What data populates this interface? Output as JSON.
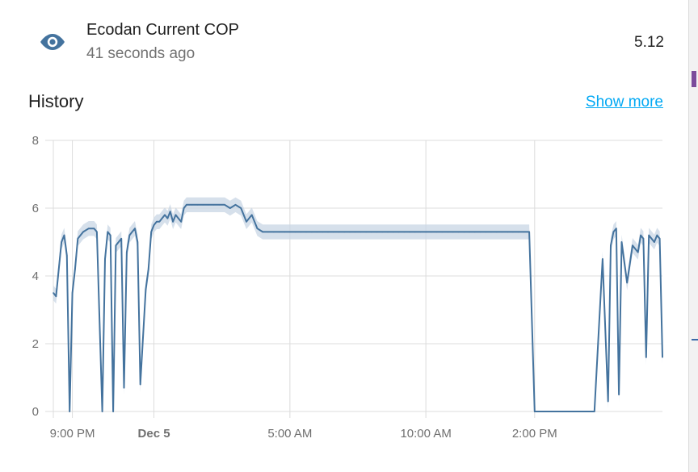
{
  "entity": {
    "name": "Ecodan Current COP",
    "last_changed": "41 seconds ago",
    "state": "5.12",
    "icon": "eye-icon"
  },
  "history": {
    "title": "History",
    "show_more": "Show more"
  },
  "colors": {
    "accent": "#03a9f4",
    "icon": "#44739e",
    "line": "#44739e",
    "band": "#c8d5e4"
  },
  "chart_data": {
    "type": "line",
    "title": "",
    "xlabel": "",
    "ylabel": "",
    "ylim": [
      0,
      8
    ],
    "y_ticks": [
      "0",
      "2",
      "4",
      "6",
      "8"
    ],
    "x_ticks": [
      {
        "label": "9:00 PM",
        "bold": false,
        "x": 21.0
      },
      {
        "label": "Dec 5",
        "bold": true,
        "x": 24.0
      },
      {
        "label": "5:00 AM",
        "bold": false,
        "x": 29.0
      },
      {
        "label": "10:00 AM",
        "bold": false,
        "x": 34.0
      },
      {
        "label": "2:00 PM",
        "bold": false,
        "x": 38.0
      }
    ],
    "xlim": [
      20.3,
      42.7
    ],
    "grid": true,
    "series": [
      {
        "x": [
          20.3,
          20.4,
          20.6,
          20.7,
          20.8,
          20.9,
          21.0,
          21.1,
          21.2,
          21.4,
          21.6,
          21.8,
          21.9,
          22.1,
          22.2,
          22.3,
          22.4,
          22.5,
          22.6,
          22.8,
          22.9,
          23.0,
          23.1,
          23.2,
          23.3,
          23.4,
          23.5,
          23.7,
          23.8,
          23.9,
          24.0,
          24.1,
          24.2,
          24.4,
          24.5,
          24.6,
          24.7,
          24.8,
          24.9,
          25.0,
          25.1,
          25.2,
          25.3,
          25.4,
          25.6,
          25.8,
          26.0,
          26.2,
          26.4,
          26.6,
          26.8,
          27.0,
          27.2,
          27.4,
          27.6,
          27.8,
          28.0,
          28.2,
          28.4,
          28.6,
          28.8,
          29.0,
          29.2,
          29.4,
          29.6,
          29.8,
          30.0,
          30.2,
          30.4,
          30.6,
          30.8,
          31.0,
          31.2,
          31.4,
          31.6,
          31.8,
          32.0,
          32.2,
          32.4,
          32.6,
          32.8,
          33.0,
          33.2,
          33.4,
          33.6,
          33.8,
          34.0,
          34.2,
          34.4,
          34.6,
          34.8,
          35.0,
          35.2,
          35.4,
          35.6,
          35.8,
          36.0,
          36.2,
          36.4,
          36.6,
          36.8,
          37.0,
          37.2,
          37.4,
          37.6,
          37.8,
          38.0,
          38.1,
          38.3,
          38.6,
          39.0,
          39.4,
          39.8,
          40.2,
          40.5,
          40.7,
          40.8,
          40.9,
          41.0,
          41.1,
          41.2,
          41.4,
          41.6,
          41.8,
          41.9,
          42.0,
          42.1,
          42.2,
          42.3,
          42.4,
          42.5,
          42.6,
          42.7
        ],
        "y": [
          3.5,
          3.4,
          5.0,
          5.2,
          4.6,
          0.0,
          3.5,
          4.2,
          5.1,
          5.3,
          5.4,
          5.4,
          5.3,
          0.0,
          4.5,
          5.3,
          5.2,
          0.0,
          4.9,
          5.1,
          0.7,
          4.7,
          5.2,
          5.3,
          5.4,
          5.0,
          0.8,
          3.6,
          4.2,
          5.3,
          5.5,
          5.6,
          5.6,
          5.8,
          5.7,
          5.9,
          5.6,
          5.8,
          5.7,
          5.6,
          6.0,
          6.1,
          6.1,
          6.1,
          6.1,
          6.1,
          6.1,
          6.1,
          6.1,
          6.1,
          6.0,
          6.1,
          6.0,
          5.6,
          5.8,
          5.4,
          5.3,
          5.3,
          5.3,
          5.3,
          5.3,
          5.3,
          5.3,
          5.3,
          5.3,
          5.3,
          5.3,
          5.3,
          5.3,
          5.3,
          5.3,
          5.3,
          5.3,
          5.3,
          5.3,
          5.3,
          5.3,
          5.3,
          5.3,
          5.3,
          5.3,
          5.3,
          5.3,
          5.3,
          5.3,
          5.3,
          5.3,
          5.3,
          5.3,
          5.3,
          5.3,
          5.3,
          5.3,
          5.3,
          5.3,
          5.3,
          5.3,
          5.3,
          5.3,
          5.3,
          5.3,
          5.3,
          5.3,
          5.3,
          5.3,
          5.3,
          0.0,
          0.0,
          0.0,
          0.0,
          0.0,
          0.0,
          0.0,
          0.0,
          4.5,
          0.3,
          4.9,
          5.3,
          5.4,
          0.5,
          5.0,
          3.8,
          4.9,
          4.7,
          5.2,
          5.1,
          1.6,
          5.2,
          5.1,
          5.0,
          5.2,
          5.1,
          1.6
        ]
      }
    ]
  }
}
